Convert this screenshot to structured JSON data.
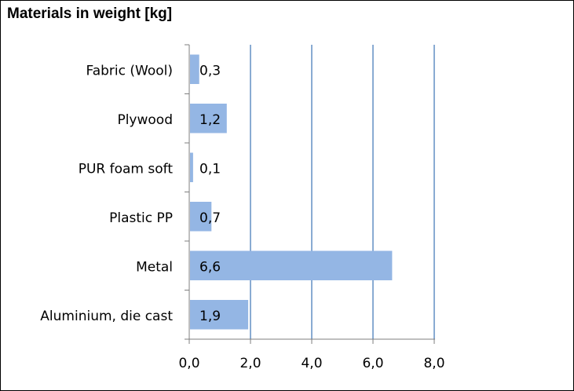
{
  "chart_data": {
    "type": "bar",
    "orientation": "horizontal",
    "title": "Materials in weight [kg]",
    "xlabel": "",
    "ylabel": "",
    "categories": [
      "Fabric (Wool)",
      "Plywood",
      "PUR foam soft",
      "Plastic PP",
      "Metal",
      "Aluminium, die cast"
    ],
    "values": [
      0.3,
      1.2,
      0.1,
      0.7,
      6.6,
      1.9
    ],
    "data_labels": [
      "0,3",
      "1,2",
      "0,1",
      "0,7",
      "6,6",
      "1,9"
    ],
    "xlim": [
      0,
      8
    ],
    "x_ticks": [
      0,
      2,
      4,
      6,
      8
    ],
    "x_tick_labels": [
      "0,0",
      "2,0",
      "4,0",
      "6,0",
      "8,0"
    ],
    "grid": "vertical",
    "legend": "none",
    "bar_color": "#94b6e4",
    "grid_color": "#4a7ebb",
    "axis_color": "#7f7f7f"
  }
}
